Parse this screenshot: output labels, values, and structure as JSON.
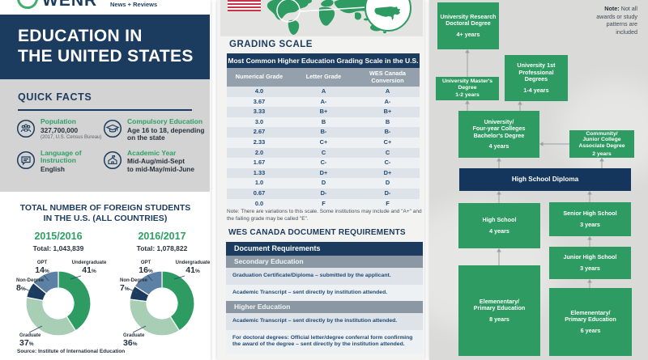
{
  "brand": {
    "name": "WENR",
    "tagline": "News + Reviews"
  },
  "title": {
    "line1": "EDUCATION IN",
    "line2": "THE UNITED STATES"
  },
  "quick_facts": {
    "heading": "QUICK FACTS",
    "facts": [
      {
        "icon": "people-icon",
        "label": "Population",
        "value": "327,700,000",
        "caption": "(2017, U.S. Census Bureau)"
      },
      {
        "icon": "graduation-cap-icon",
        "label": "Compulsory Education",
        "value": "Age 16 to 18, depending\non the state",
        "caption": ""
      },
      {
        "icon": "speech-bubble-icon",
        "label": "Language of Instruction",
        "value": "English",
        "caption": ""
      },
      {
        "icon": "school-building-icon",
        "label": "Academic Year",
        "value": "Mid-Aug/mid-Sept\nto mid-May/mid-June",
        "caption": ""
      }
    ]
  },
  "foreign_students": {
    "heading_line1": "TOTAL NUMBER OF FOREIGN STUDENTS",
    "heading_line2": "IN THE U.S. (ALL COUNTRIES)",
    "source": "Source: Institute of International Education"
  },
  "chart_data": [
    {
      "type": "pie",
      "title": "2015/2016",
      "subtitle": "Total: 1,043,839",
      "unit": "%",
      "segments": [
        {
          "label": "Undergraduate",
          "value": 41
        },
        {
          "label": "Graduate",
          "value": 37
        },
        {
          "label": "Non-Degree",
          "value": 8
        },
        {
          "label": "OPT",
          "value": 14
        }
      ]
    },
    {
      "type": "pie",
      "title": "2016/2017",
      "subtitle": "Total: 1,078,822",
      "unit": "%",
      "segments": [
        {
          "label": "Undergraduate",
          "value": 41
        },
        {
          "label": "Graduate",
          "value": 36
        },
        {
          "label": "Non-Degree",
          "value": 7
        },
        {
          "label": "OPT",
          "value": 16
        }
      ]
    }
  ],
  "grading_scale": {
    "heading": "GRADING SCALE",
    "table_title": "Most Common Higher Education Grading Scale in the U.S.",
    "columns": [
      "Numerical Grade",
      "Letter Grade",
      "WES Canada Conversion"
    ],
    "rows": [
      [
        "4.0",
        "A",
        "A"
      ],
      [
        "3.67",
        "A-",
        "A-"
      ],
      [
        "3.33",
        "B+",
        "B+"
      ],
      [
        "3.0",
        "B",
        "B"
      ],
      [
        "2.67",
        "B-",
        "B-"
      ],
      [
        "2.33",
        "C+",
        "C+"
      ],
      [
        "2.0",
        "C",
        "C"
      ],
      [
        "1.67",
        "C-",
        "C-"
      ],
      [
        "1.33",
        "D+",
        "D+"
      ],
      [
        "1.0",
        "D",
        "D"
      ],
      [
        "0.67",
        "D-",
        "D-"
      ],
      [
        "0.0",
        "F",
        "F"
      ]
    ],
    "note": "Note: There are variations to this scale. Some institutions may include and \"A+\" and the failing grade may be called \"E\"."
  },
  "wes_documents": {
    "heading": "WES CANADA DOCUMENT REQUIREMENTS",
    "table_title": "Document Requirements",
    "sections": [
      {
        "label": "Secondary Education",
        "items": [
          "Graduation Certificate/Diploma – submitted by the applicant.",
          "Academic Transcript – sent directly by institution attended."
        ]
      },
      {
        "label": "Higher Education",
        "items": [
          "Academic Transcript – sent directly by the institution attended.",
          "For doctoral degrees: Official letter/degree conferral form confirming the award of the degree – sent directly by the institution attended."
        ]
      }
    ]
  },
  "pathway": {
    "note_label": "Note:",
    "note_text": " Not all awards or study patterns are included",
    "boxes": [
      {
        "id": "doctoral",
        "title": "University Research\nDoctoral Degree",
        "years": "4+ years"
      },
      {
        "id": "professional",
        "title": "University 1st\nProfessional\nDegrees",
        "years": "1-4 years"
      },
      {
        "id": "masters",
        "title": "University Master's\nDegree",
        "years": "1-2 years"
      },
      {
        "id": "bachelors",
        "title": "University/\nFour-year Colleges\nBachelor's Degree",
        "years": "4 years"
      },
      {
        "id": "associate",
        "title": "Community/\nJunior College\nAssociate Degree",
        "years": "2 years"
      },
      {
        "id": "hs-diploma",
        "title": "High School Diploma",
        "years": ""
      },
      {
        "id": "high-school",
        "title": "High School",
        "years": "4 years"
      },
      {
        "id": "senior-high",
        "title": "Senior High School",
        "years": "3 years"
      },
      {
        "id": "junior-high",
        "title": "Junior High School",
        "years": "3 years"
      },
      {
        "id": "elementary-8",
        "title": "Elemenentary/\nPrimary Education",
        "years": "8 years"
      },
      {
        "id": "elementary-6",
        "title": "Elemenentary/\nPrimary Education",
        "years": "6 years"
      }
    ]
  },
  "colors": {
    "navy": "#1b3b5f",
    "green": "#2e9c62",
    "light_green": "#a8cfb5",
    "slate": "#5d81a5",
    "flag_red": "#c9334a",
    "segment_colors": {
      "Undergraduate": "#2e9c62",
      "Graduate": "#a8cfb5",
      "Non-Degree": "#1b3b5f",
      "OPT": "#5d81a5"
    }
  }
}
